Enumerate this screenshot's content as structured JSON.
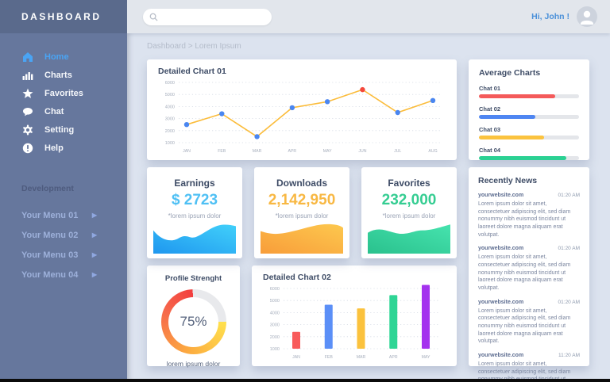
{
  "app": {
    "title": "DASHBOARD"
  },
  "topbar": {
    "search_placeholder": "",
    "greeting": "Hi, John !"
  },
  "sidebar": {
    "items": [
      {
        "label": "Home",
        "icon": "home-icon",
        "active": true
      },
      {
        "label": "Charts",
        "icon": "charts-icon",
        "active": false
      },
      {
        "label": "Favorites",
        "icon": "star-icon",
        "active": false
      },
      {
        "label": "Chat",
        "icon": "chat-icon",
        "active": false
      },
      {
        "label": "Setting",
        "icon": "gear-icon",
        "active": false
      },
      {
        "label": "Help",
        "icon": "help-icon",
        "active": false
      }
    ],
    "dev_label": "Development",
    "dev_items": [
      {
        "label": "Your Menu 01"
      },
      {
        "label": "Your Menu 02"
      },
      {
        "label": "Your Menu 03"
      },
      {
        "label": "Your Menu 04"
      }
    ]
  },
  "breadcrumb": "Dashboard > Lorem Ipsum",
  "avg": {
    "title": "Average Charts"
  },
  "progress": [
    {
      "label": "Chat 01",
      "value": 76,
      "color": "#f45a5a"
    },
    {
      "label": "Chat 02",
      "value": 56,
      "color": "#4f86f2"
    },
    {
      "label": "Chat 03",
      "value": 65,
      "color": "#fbc33f"
    },
    {
      "label": "Chat 04",
      "value": 87,
      "color": "#2bd193"
    }
  ],
  "stats": [
    {
      "title": "Earnings",
      "value": "$ 2723",
      "caption": "*lorem ipsum dolor",
      "color": "#4fc0f4"
    },
    {
      "title": "Downloads",
      "value": "2,142,950",
      "caption": "*lorem ipsum dolor",
      "color": "#f8b843"
    },
    {
      "title": "Favorites",
      "value": "232,000",
      "caption": "*lorem ipsum dolor",
      "color": "#35cd92"
    }
  ],
  "profile": {
    "title": "Profile Strenght",
    "percent": "75%",
    "percent_value": 75,
    "caption": "lorem ipsum dolor"
  },
  "news": {
    "title": "Recently News",
    "items": [
      {
        "site": "yourwebsite.com",
        "time": "01:20 AM",
        "body": "Lorem ipsum dolor sit amet, consectetuer adipiscing elit, sed diam nonummy nibh euismod tincidunt ut laoreet dolore magna aliquam erat volutpat."
      },
      {
        "site": "yourwebsite.com",
        "time": "01:20 AM",
        "body": "Lorem ipsum dolor sit amet, consectetuer adipiscing elit, sed diam nonummy nibh euismod tincidunt ut laoreet dolore magna aliquam erat volutpat."
      },
      {
        "site": "yourwebsite.com",
        "time": "01:20 AM",
        "body": "Lorem ipsum dolor sit amet, consectetuer adipiscing elit, sed diam nonummy nibh euismod tincidunt ut laoreet dolore magna aliquam erat volutpat."
      },
      {
        "site": "yourwebsite.com",
        "time": "11:20 AM",
        "body": "Lorem ipsum dolor sit amet, consectetuer adipiscing elit, sed diam nonummy nibh euismod tincidunt ut laoreet dolore magna aliquam erat volutpat."
      }
    ]
  },
  "chart_data": [
    {
      "type": "line",
      "title": "Detailed Chart 01",
      "categories": [
        "JAN",
        "FEB",
        "MAR",
        "APR",
        "MAY",
        "JUN",
        "JUL",
        "AUG"
      ],
      "values": [
        2500,
        3400,
        1500,
        3900,
        4400,
        5400,
        3500,
        4500
      ],
      "ylim": [
        1000,
        6000
      ],
      "yticks": [
        1000,
        2000,
        3000,
        4000,
        5000,
        6000
      ],
      "xlabel": "",
      "ylabel": "",
      "grid": "dotted-horizontal",
      "legend": "none",
      "line_color": "#fbbc3a",
      "point_color": "#4a86f0",
      "highlight_index": 5,
      "highlight_color": "#f4483c"
    },
    {
      "type": "bar",
      "title": "Detailed Chart 02",
      "categories": [
        "JAN",
        "FEB",
        "MAR",
        "APR",
        "MAY"
      ],
      "values": [
        2400,
        4650,
        4350,
        5450,
        6300
      ],
      "colors": [
        "#f85b5b",
        "#5b8ff7",
        "#fbc23d",
        "#2fd595",
        "#a432ee"
      ],
      "ylim": [
        1000,
        6000
      ],
      "yticks": [
        1000,
        2000,
        3000,
        4000,
        5000,
        6000
      ],
      "xlabel": "",
      "ylabel": "",
      "grid": "dotted-horizontal",
      "legend": "none"
    }
  ]
}
